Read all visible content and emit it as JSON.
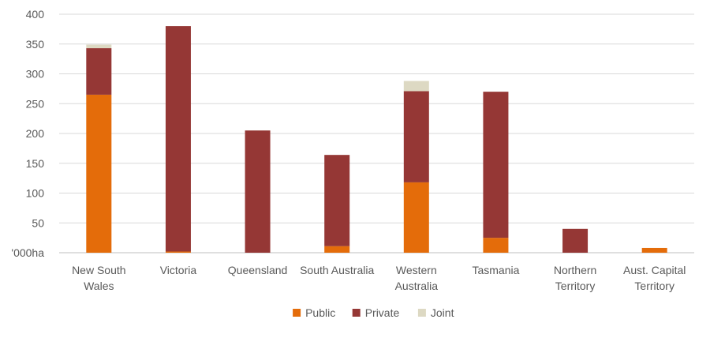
{
  "chart_data": {
    "type": "bar",
    "stacked": true,
    "categories": [
      [
        "New South",
        "Wales"
      ],
      [
        "Victoria"
      ],
      [
        "Queensland"
      ],
      [
        "South Australia"
      ],
      [
        "Western",
        "Australia"
      ],
      [
        "Tasmania"
      ],
      [
        "Northern",
        "Territory"
      ],
      [
        "Aust. Capital",
        "Territory"
      ]
    ],
    "series": [
      {
        "name": "Public",
        "color": "#E46C0A",
        "values": [
          265,
          2,
          0,
          11,
          118,
          25,
          0,
          8
        ]
      },
      {
        "name": "Private",
        "color": "#953735",
        "values": [
          78,
          378,
          205,
          153,
          153,
          245,
          40,
          0
        ]
      },
      {
        "name": "Joint",
        "color": "#DDD9C3",
        "values": [
          6,
          0,
          0,
          0,
          17,
          0,
          0,
          0
        ]
      }
    ],
    "y_ticks": [
      "'000ha",
      "50",
      "100",
      "150",
      "200",
      "250",
      "300",
      "350",
      "400"
    ],
    "ylim": [
      0,
      400
    ],
    "grid": true,
    "legend_position": "bottom"
  }
}
